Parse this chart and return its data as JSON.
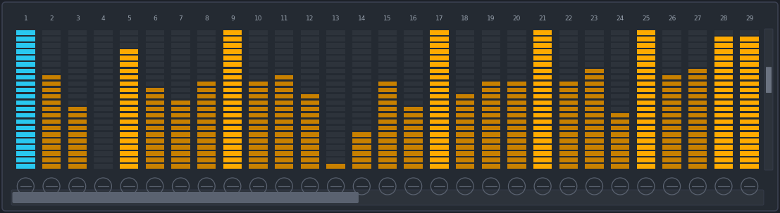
{
  "bg_color": "#1c2028",
  "panel_color": "#242a32",
  "num_steps": 29,
  "max_segments": 22,
  "bar_values": [
    22,
    15,
    10,
    0,
    19,
    13,
    11,
    14,
    22,
    14,
    15,
    12,
    1,
    6,
    14,
    10,
    22,
    12,
    14,
    14,
    22,
    14,
    16,
    9,
    22,
    15,
    16,
    21,
    21
  ],
  "bar_colors": [
    "#29c8f0",
    "#c88000",
    "#c88000",
    "#c88000",
    "#ffaa00",
    "#c88000",
    "#c88000",
    "#c88000",
    "#ffaa00",
    "#c88000",
    "#c88000",
    "#c88000",
    "#c88000",
    "#c88000",
    "#c88000",
    "#c88000",
    "#ffaa00",
    "#c88000",
    "#c88000",
    "#c88000",
    "#ffaa00",
    "#c88000",
    "#c88000",
    "#c88000",
    "#ffaa00",
    "#c88000",
    "#c88000",
    "#ffaa00",
    "#ffaa00"
  ],
  "inactive_segment_color": "#2d333b",
  "title_color": "#9aa4b0",
  "knob_color": "#5a6270",
  "scrollbar_handle_color": "#6a7280",
  "scrollbar_bg_color": "#2d333b",
  "hscroll_handle_color": "#5a6270",
  "border_color": "#3a4050"
}
